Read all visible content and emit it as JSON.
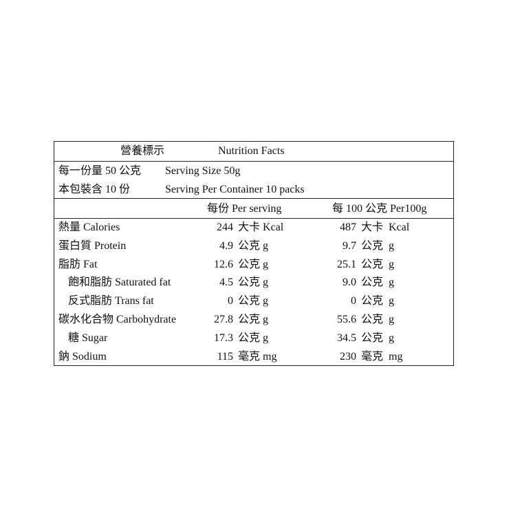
{
  "title": {
    "zh": "營養標示",
    "en": "Nutrition Facts"
  },
  "serving_size": {
    "zh": "每一份量 50 公克",
    "en": "Serving Size 50g"
  },
  "servings_per_container": {
    "zh": "本包裝含 10 份",
    "en": "Serving Per Container 10 packs"
  },
  "columns": {
    "per_serving": "每份  Per serving",
    "per_100g": "每 100 公克 Per100g"
  },
  "rows": [
    {
      "name": "熱量  Calories",
      "serving_value": "244",
      "serving_unit": "大卡 Kcal",
      "per100_value": "487",
      "per100_unit": "大卡  Kcal",
      "indent": false
    },
    {
      "name": "蛋白質 Protein",
      "serving_value": "4.9",
      "serving_unit": "公克 g",
      "per100_value": "9.7",
      "per100_unit": "公克  g",
      "indent": false
    },
    {
      "name": "脂肪  Fat",
      "serving_value": "12.6",
      "serving_unit": "公克 g",
      "per100_value": "25.1",
      "per100_unit": "公克  g",
      "indent": false
    },
    {
      "name": "飽和脂肪 Saturated fat",
      "serving_value": "4.5",
      "serving_unit": "公克 g",
      "per100_value": "9.0",
      "per100_unit": "公克  g",
      "indent": true
    },
    {
      "name": "反式脂肪  Trans fat",
      "serving_value": "0",
      "serving_unit": "公克 g",
      "per100_value": "0",
      "per100_unit": "公克  g",
      "indent": true
    },
    {
      "name": "碳水化合物 Carbohydrate",
      "serving_value": "27.8",
      "serving_unit": "公克 g",
      "per100_value": "55.6",
      "per100_unit": "公克  g",
      "indent": false
    },
    {
      "name": "糖  Sugar",
      "serving_value": "17.3",
      "serving_unit": "公克 g",
      "per100_value": "34.5",
      "per100_unit": "公克  g",
      "indent": true
    },
    {
      "name": "鈉   Sodium",
      "serving_value": "115",
      "serving_unit": "毫克 mg",
      "per100_value": "230",
      "per100_unit": "毫克  mg",
      "indent": false
    }
  ]
}
